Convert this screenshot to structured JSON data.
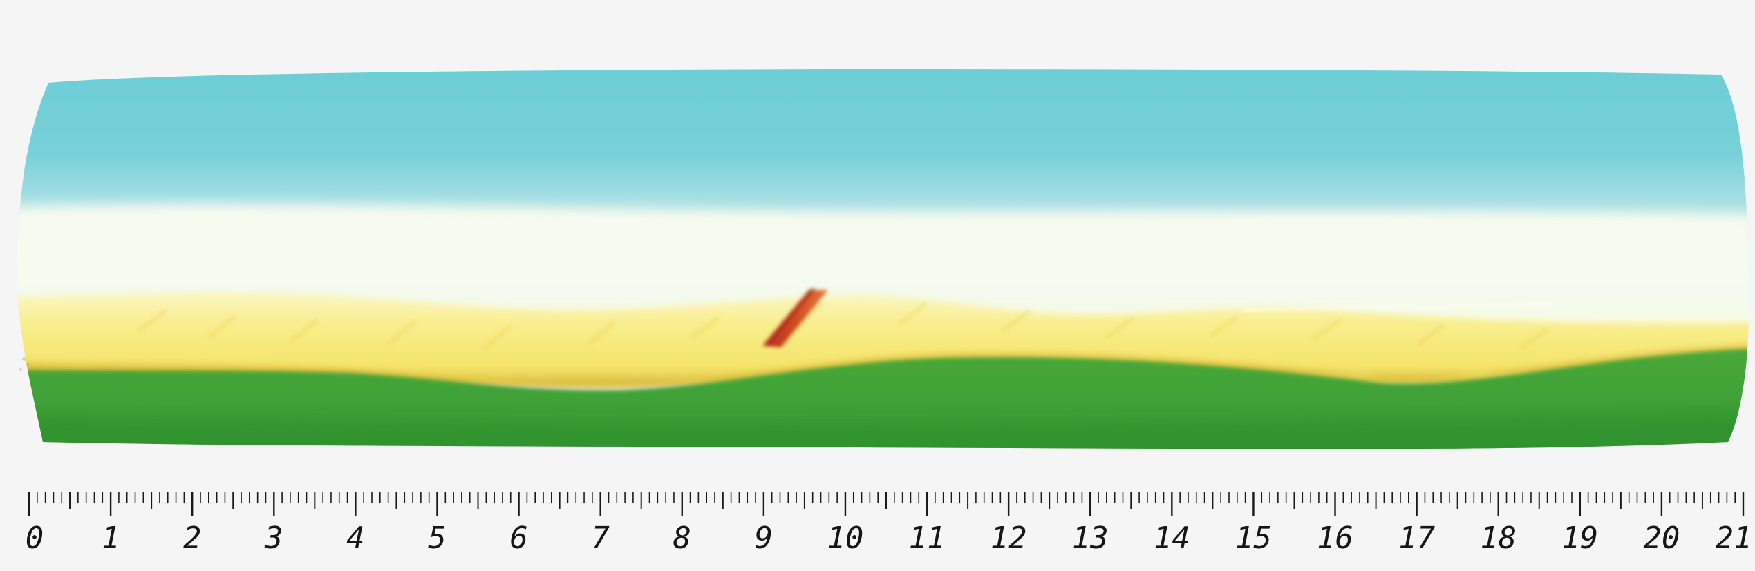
{
  "scene": {
    "subject": "painted-paper-strip",
    "colors": {
      "background": "#f5f5f5",
      "sky": "#6fcfd6",
      "sky_light": "#d9f2f1",
      "haze": "#f4fbe8",
      "sand": "#f6ec86",
      "sand_shadow": "#e3c840",
      "grass": "#3fa43a",
      "grass_dark": "#2d8f2c",
      "mark": "#c8401c",
      "ruler_ink": "#161616"
    }
  },
  "ruler": {
    "unit": "cm",
    "minor_ticks_per_unit": 10,
    "labels": [
      "0",
      "1",
      "2",
      "3",
      "4",
      "5",
      "6",
      "7",
      "8",
      "9",
      "10",
      "11",
      "12",
      "13",
      "14",
      "15",
      "16",
      "17",
      "18",
      "19",
      "20",
      "21"
    ]
  }
}
